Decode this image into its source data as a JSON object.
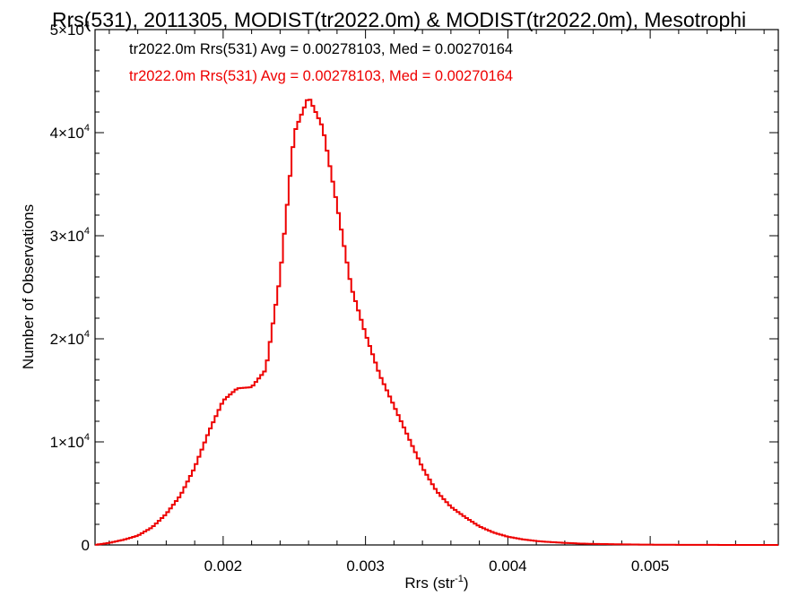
{
  "chart_data": {
    "type": "line",
    "title": "Rrs(531), 2011305, MODIST(tr2022.0m) & MODIST(tr2022.0m), Mesotrophi",
    "xlabel": "Rrs (str",
    "xlabel_sup": "-1",
    "xlabel_suffix": ")",
    "ylabel": "Number of Observations",
    "xlim": [
      0.0011,
      0.0059
    ],
    "ylim": [
      0,
      50000
    ],
    "x_ticks": [
      {
        "value": 0.002,
        "label": "0.002"
      },
      {
        "value": 0.003,
        "label": "0.003"
      },
      {
        "value": 0.004,
        "label": "0.004"
      },
      {
        "value": 0.005,
        "label": "0.005"
      }
    ],
    "y_ticks": [
      {
        "value": 0,
        "label": "0",
        "sup": ""
      },
      {
        "value": 10000,
        "label": "1×10",
        "sup": "4"
      },
      {
        "value": 20000,
        "label": "2×10",
        "sup": "4"
      },
      {
        "value": 30000,
        "label": "3×10",
        "sup": "4"
      },
      {
        "value": 40000,
        "label": "4×10",
        "sup": "4"
      },
      {
        "value": 50000,
        "label": "5×10",
        "sup": "4"
      }
    ],
    "grid": false,
    "legend_placement": "top-left",
    "legend": [
      {
        "text": "tr2022.0m Rrs(531) Avg = 0.00278103, Med = 0.00270164",
        "color": "#000000"
      },
      {
        "text": "tr2022.0m Rrs(531) Avg = 0.00278103, Med = 0.00270164",
        "color": "#ee0000"
      }
    ],
    "series": [
      {
        "color": "#ee0000",
        "style": "step",
        "x": [
          0.0011,
          0.0012,
          0.0013,
          0.0014,
          0.0015,
          0.0016,
          0.0017,
          0.0018,
          0.0019,
          0.002,
          0.0021,
          0.0022,
          0.0023,
          0.0024,
          0.0025,
          0.0026,
          0.0027,
          0.0028,
          0.0029,
          0.003,
          0.0031,
          0.0032,
          0.0033,
          0.0034,
          0.0035,
          0.0036,
          0.0037,
          0.0038,
          0.0039,
          0.004,
          0.0041,
          0.0042,
          0.0043,
          0.0044,
          0.0045,
          0.0046,
          0.0047,
          0.0048,
          0.0049,
          0.005,
          0.0051,
          0.0052,
          0.0053,
          0.0054,
          0.0055,
          0.0056,
          0.0057,
          0.0058,
          0.0059
        ],
        "y": [
          0,
          200,
          500,
          900,
          1700,
          3000,
          4800,
          7500,
          11000,
          14000,
          15200,
          15300,
          17000,
          26000,
          40000,
          43500,
          40500,
          33000,
          25000,
          20500,
          16500,
          13500,
          10500,
          7500,
          5200,
          3700,
          2700,
          1800,
          1200,
          800,
          550,
          380,
          280,
          200,
          140,
          100,
          80,
          60,
          40,
          30,
          20,
          15,
          10,
          8,
          5,
          3,
          2,
          1,
          0
        ]
      }
    ]
  }
}
